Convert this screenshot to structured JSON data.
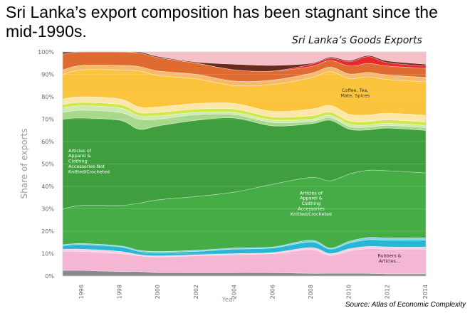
{
  "headline": "Sri Lanka’s export composition has been stagnant since the mid-1990s.",
  "source": "Source: Atlas of Economic Complexity",
  "chart_data": {
    "type": "area",
    "stacked": true,
    "title": "Sri Lanka’s Goods Exports",
    "xlabel": "Year",
    "ylabel": "Share of exports",
    "xlim": [
      1995,
      2014
    ],
    "ylim": [
      0,
      100
    ],
    "x": [
      1995,
      1996,
      1998,
      1999,
      2000,
      2002,
      2004,
      2006,
      2008,
      2009,
      2010,
      2011,
      2012,
      2014
    ],
    "x_tick_labels": [
      "1996",
      "1998",
      "2000",
      "2002",
      "2004",
      "2006",
      "2008",
      "2010",
      "2012",
      "2014"
    ],
    "y_tick_labels": [
      "0%",
      "10%",
      "20%",
      "30%",
      "40%",
      "50%",
      "60%",
      "70%",
      "80%",
      "90%",
      "100%"
    ],
    "series": [
      {
        "name": "Grey (other)",
        "color": "#8a8a8a",
        "values": [
          2.5,
          2.5,
          2,
          2,
          1.5,
          1.5,
          1.5,
          1.5,
          1.2,
          1.2,
          1.2,
          1.2,
          1,
          1
        ]
      },
      {
        "name": "Rubbers & Articles...",
        "color": "#f4b6d2",
        "values": [
          8.5,
          8.5,
          8,
          7,
          7,
          7.5,
          8,
          8.5,
          10.5,
          8,
          10,
          11,
          11,
          11
        ]
      },
      {
        "name": "Light pink",
        "color": "#f8d0e2",
        "values": [
          1,
          1,
          1,
          0.5,
          0.5,
          0.5,
          0.5,
          0.5,
          1,
          0.8,
          1,
          1,
          1,
          1
        ]
      },
      {
        "name": "Cyan",
        "color": "#29b6d6",
        "values": [
          1.5,
          2,
          2,
          1.5,
          1.5,
          1.5,
          2,
          2,
          2.5,
          2,
          2.5,
          3,
          3,
          3
        ]
      },
      {
        "name": "Light cyan",
        "color": "#7ed3e6",
        "values": [
          0.5,
          0.5,
          0.5,
          0.5,
          0.5,
          0.5,
          0.5,
          0.5,
          0.8,
          0.5,
          0.8,
          1,
          1,
          1
        ]
      },
      {
        "name": "Articles of Apparel & Clothing Accessories Knitted/Crocheted",
        "color": "#46ac46",
        "values": [
          16,
          17,
          18,
          21,
          23,
          24,
          25,
          28,
          28,
          30,
          30,
          30,
          30,
          29
        ]
      },
      {
        "name": "Articles of Apparel & Clothing Accessories-Not Knitted/Crocheted",
        "color": "#3f9f3f",
        "values": [
          40,
          39,
          38,
          33,
          33,
          34,
          33,
          26,
          24,
          27,
          20,
          18,
          19,
          19
        ]
      },
      {
        "name": "Light green",
        "color": "#a8d98a",
        "values": [
          3,
          3.5,
          3.5,
          4.5,
          3,
          2.5,
          1.5,
          1.5,
          1,
          1.2,
          1.2,
          1.2,
          1.2,
          1.2
        ]
      },
      {
        "name": "Pale green",
        "color": "#cfe9b2",
        "values": [
          2,
          2,
          2,
          1.5,
          1.5,
          1,
          1,
          1,
          1,
          1,
          1,
          1,
          1,
          1
        ]
      },
      {
        "name": "Lime",
        "color": "#cfe84c",
        "values": [
          1.5,
          1.5,
          1.5,
          1.5,
          1.5,
          1.5,
          1.5,
          1.5,
          1.5,
          1.5,
          1.5,
          1.5,
          1.5,
          1.5
        ]
      },
      {
        "name": "Cream",
        "color": "#fde7a8",
        "values": [
          2.5,
          2.5,
          2.5,
          2.5,
          2.5,
          2.5,
          2.5,
          2.5,
          3,
          3,
          3,
          3,
          3,
          3
        ]
      },
      {
        "name": "Coffee, Tea, Mate, Spices",
        "color": "#fcc43c",
        "values": [
          11,
          12,
          13,
          16,
          14,
          11,
          8,
          12,
          14,
          15,
          16,
          17,
          15,
          15
        ]
      },
      {
        "name": "Light orange",
        "color": "#f7b96a",
        "values": [
          2,
          2,
          2,
          2,
          2,
          2,
          2,
          2,
          2,
          2,
          2,
          2,
          2,
          2
        ]
      },
      {
        "name": "Orange",
        "color": "#e06b30",
        "values": [
          7,
          7,
          6,
          6,
          6,
          5,
          5,
          4,
          3,
          3,
          3.5,
          4,
          4,
          4
        ]
      },
      {
        "name": "Red",
        "color": "#e8282c",
        "values": [
          0,
          0,
          0,
          0,
          0,
          0,
          0,
          0,
          1,
          1,
          2,
          3,
          1.5,
          1
        ]
      },
      {
        "name": "Dark brown",
        "color": "#6b2a1e",
        "values": [
          1,
          0.5,
          0.5,
          0.5,
          0.5,
          0.5,
          2.5,
          2.5,
          0.5,
          0.5,
          0.5,
          0.5,
          0.8,
          0.8
        ]
      },
      {
        "name": "Light pink (top)",
        "color": "#f5c0c8",
        "values": [
          0,
          0,
          0,
          0,
          0,
          0,
          0,
          0,
          0,
          0,
          0,
          0,
          0,
          0
        ]
      }
    ],
    "annotations": [
      {
        "lines": [
          "Articles of",
          "Apparel &",
          "Clothing",
          "Accessories-Not",
          "Knitted/Crocheted"
        ],
        "x": 1995.3,
        "y": 55.3,
        "align": "start",
        "color": "#ffffff"
      },
      {
        "lines": [
          "Articles of",
          "Apparel &",
          "Clothing",
          "Accessories",
          "Knitted/Crocheted"
        ],
        "x": 2008.0,
        "y": 36.4,
        "align": "middle",
        "color": "#ffffff"
      },
      {
        "lines": [
          "Coffee, Tea,",
          "Mate, Spices"
        ],
        "x": 2010.3,
        "y": 82.2,
        "align": "middle",
        "color": "#333333"
      },
      {
        "lines": [
          "Rubbers &",
          "Articles..."
        ],
        "x": 2012.1,
        "y": 8.4,
        "align": "middle",
        "color": "#333333"
      }
    ]
  }
}
